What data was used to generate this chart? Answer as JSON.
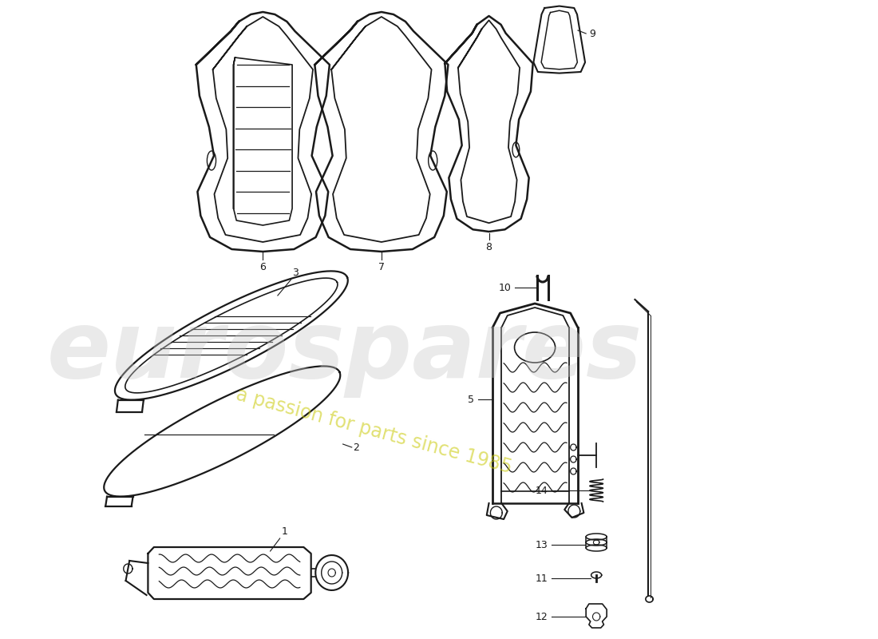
{
  "bg_color": "#ffffff",
  "line_color": "#1a1a1a",
  "watermark_text1": "eurospares",
  "watermark_text2": "a passion for parts since 1985"
}
